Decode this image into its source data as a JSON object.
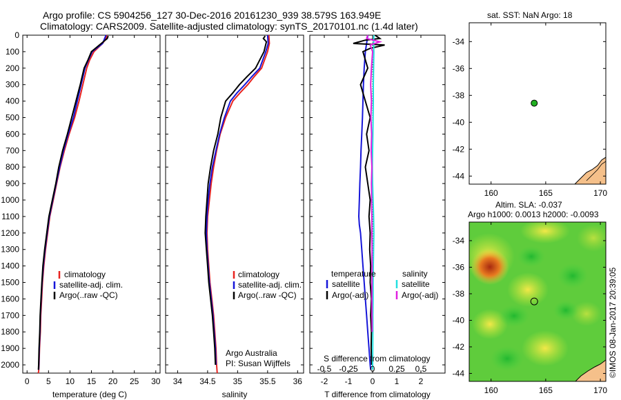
{
  "header": {
    "line1": "Argo profile: CS 5904256_127 30-Dec-2016 20161230_939 38.579S 163.949E",
    "line2": "Climatology: CARS2009. Satellite-adjusted climatology: synTS_20170101.nc (1.4d later)"
  },
  "colors": {
    "clim": "#e8231f",
    "sat": "#1515d8",
    "argo": "#000000",
    "sat_s": "#22e0e0",
    "argo_s": "#e020e0"
  },
  "chart_data": [
    {
      "type": "line",
      "id": "temperature",
      "xlabel": "temperature (deg C)",
      "xlim": [
        -1,
        31
      ],
      "ylim": [
        2050,
        0
      ],
      "xticks": [
        0,
        5,
        10,
        15,
        20,
        25,
        30
      ],
      "yticks": [
        0,
        100,
        200,
        300,
        400,
        500,
        600,
        700,
        800,
        900,
        1000,
        1100,
        1200,
        1300,
        1400,
        1500,
        1600,
        1700,
        1800,
        1900,
        2000
      ],
      "legend": [
        "climatology",
        "satellite-adj. clim.",
        "Argo(..raw -QC)"
      ],
      "series": [
        {
          "name": "climatology",
          "color": "clim",
          "x": [
            18.6,
            18.4,
            17.6,
            15.6,
            14.6,
            13.9,
            13.0,
            12.1,
            11.1,
            9.8,
            8.7,
            7.7,
            6.9,
            6.1,
            5.3,
            4.8,
            4.3,
            3.9,
            3.6,
            3.4,
            3.2,
            3.1,
            2.9,
            2.8,
            2.7,
            2.6
          ],
          "y": [
            0,
            20,
            50,
            100,
            150,
            200,
            300,
            400,
            500,
            600,
            700,
            800,
            900,
            1000,
            1100,
            1200,
            1300,
            1400,
            1500,
            1600,
            1700,
            1800,
            1900,
            2000,
            2040,
            2050
          ]
        },
        {
          "name": "satellite-adj. clim.",
          "color": "sat",
          "x": [
            18.4,
            17.6,
            15.2,
            14.3,
            13.5,
            12.6,
            11.7,
            10.8,
            9.6,
            8.5,
            7.6,
            6.8,
            6.0,
            5.2,
            4.7,
            4.2,
            3.8,
            3.5,
            3.3,
            3.1,
            3.0,
            2.85,
            2.75,
            2.7
          ],
          "y": [
            0,
            50,
            100,
            150,
            200,
            300,
            400,
            500,
            600,
            700,
            800,
            900,
            1000,
            1100,
            1200,
            1300,
            1400,
            1500,
            1600,
            1700,
            1800,
            1900,
            2000,
            2030
          ]
        },
        {
          "name": "Argo(..raw -QC)",
          "color": "argo",
          "x": [
            18.9,
            18.7,
            17.3,
            15.0,
            14.2,
            13.3,
            12.4,
            11.4,
            10.4,
            9.4,
            8.3,
            7.4,
            6.7,
            5.9,
            5.1,
            4.6,
            4.1,
            3.7,
            3.45,
            3.25,
            3.05,
            2.95,
            2.8,
            2.7,
            2.65
          ],
          "y": [
            5,
            20,
            50,
            100,
            150,
            200,
            300,
            400,
            500,
            600,
            700,
            800,
            900,
            1000,
            1100,
            1200,
            1300,
            1400,
            1500,
            1600,
            1700,
            1800,
            1900,
            2000,
            2030
          ]
        }
      ]
    },
    {
      "type": "line",
      "id": "salinity",
      "xlabel": "salinity",
      "xlim": [
        33.8,
        36.1
      ],
      "ylim": [
        2050,
        0
      ],
      "xticks": [
        34,
        34.5,
        35,
        35.5,
        36
      ],
      "legend": [
        "climatology",
        "satellite-adj. clim.",
        "Argo(..raw -QC)"
      ],
      "annotation": [
        "Argo Australia",
        "PI: Susan Wijffels"
      ],
      "series": [
        {
          "name": "climatology",
          "color": "clim",
          "x": [
            35.52,
            35.53,
            35.5,
            35.4,
            35.28,
            35.17,
            35.04,
            34.92,
            34.8,
            34.71,
            34.65,
            34.6,
            34.56,
            34.53,
            34.5,
            34.49,
            34.5,
            34.52,
            34.54,
            34.57,
            34.6,
            34.62,
            34.64,
            34.65,
            34.66
          ],
          "y": [
            0,
            50,
            100,
            200,
            250,
            300,
            350,
            400,
            500,
            600,
            700,
            800,
            900,
            1000,
            1100,
            1200,
            1300,
            1400,
            1500,
            1600,
            1700,
            1800,
            1900,
            2000,
            2050
          ]
        },
        {
          "name": "satellite-adj. clim.",
          "color": "sat",
          "x": [
            35.5,
            35.51,
            35.47,
            35.37,
            35.24,
            35.12,
            34.99,
            34.88,
            34.78,
            34.7,
            34.64,
            34.58,
            34.54,
            34.51,
            34.49,
            34.48,
            34.49,
            34.51,
            34.53,
            34.56,
            34.59,
            34.61,
            34.63,
            34.64
          ],
          "y": [
            0,
            50,
            100,
            200,
            250,
            300,
            350,
            400,
            500,
            600,
            700,
            800,
            900,
            1000,
            1100,
            1200,
            1300,
            1400,
            1500,
            1600,
            1700,
            1800,
            1900,
            2000
          ]
        },
        {
          "name": "Argo(..raw -QC)",
          "color": "argo",
          "x": [
            35.46,
            35.43,
            35.48,
            35.44,
            35.3,
            35.16,
            35.03,
            34.92,
            34.8,
            34.72,
            34.67,
            34.6,
            34.55,
            34.51,
            34.49,
            34.47,
            34.46,
            34.48,
            34.5,
            34.52,
            34.55,
            34.58,
            34.6,
            34.62,
            34.63
          ],
          "y": [
            5,
            20,
            40,
            100,
            200,
            250,
            300,
            350,
            400,
            500,
            600,
            700,
            800,
            900,
            1000,
            1100,
            1200,
            1300,
            1400,
            1500,
            1600,
            1700,
            1800,
            1900,
            2000
          ]
        }
      ]
    },
    {
      "type": "line",
      "id": "differences",
      "xlabel": "T difference from climatology",
      "xlabel_top": "S difference from climatology",
      "xlim": [
        -2.6,
        3
      ],
      "ylim": [
        2050,
        0
      ],
      "xticks": [
        -2,
        -1,
        0,
        1,
        2
      ],
      "s_ticks": [
        "-0.5",
        "-0.25",
        "0",
        "0.25",
        "0.5"
      ],
      "legend_headers": [
        "temperature",
        "salinity"
      ],
      "legend": [
        "satellite",
        "Argo(-adj)",
        "satellite",
        "Argo(-adj)"
      ],
      "series": [
        {
          "name": "satellite",
          "color": "sat",
          "x": [
            -0.2,
            -0.25,
            -0.3,
            -0.35,
            -0.38,
            -0.4,
            -0.42,
            -0.45,
            -0.48,
            -0.5,
            -0.53,
            -0.55,
            -0.57,
            -0.55,
            -0.5,
            -0.45,
            -0.4,
            -0.35,
            -0.3,
            -0.25,
            -0.2,
            -0.15,
            -0.1,
            -0.08
          ],
          "y": [
            0,
            50,
            100,
            200,
            300,
            400,
            500,
            600,
            700,
            800,
            900,
            1000,
            1100,
            1150,
            1200,
            1300,
            1400,
            1500,
            1600,
            1700,
            1800,
            1900,
            2000,
            2030
          ]
        },
        {
          "name": "Argo(-adj)",
          "color": "argo",
          "x": [
            0.1,
            0.3,
            -0.3,
            -0.8,
            0.5,
            -0.1,
            -0.4,
            -0.2,
            -0.5,
            -0.3,
            -0.1,
            -0.25,
            -0.15,
            -0.3,
            -0.2,
            -0.1,
            -0.15,
            -0.1,
            -0.12,
            -0.08,
            -0.1,
            -0.05,
            -0.08,
            -0.05,
            -0.06,
            -0.04
          ],
          "y": [
            0,
            20,
            30,
            50,
            60,
            80,
            100,
            200,
            300,
            400,
            500,
            600,
            700,
            800,
            900,
            1000,
            1100,
            1200,
            1300,
            1400,
            1500,
            1600,
            1700,
            1800,
            1900,
            2000
          ]
        },
        {
          "name": "satellite",
          "color": "sat_s",
          "x": [
            0.05,
            0.04,
            0.05,
            0.04,
            0.03,
            0.03,
            0.02,
            0.01,
            0.0,
            -0.01,
            0.0,
            0.02,
            0.04,
            0.05,
            0.04,
            0.03,
            0.02,
            0.02,
            0.01,
            0.01,
            0.0
          ],
          "y": [
            0,
            50,
            100,
            200,
            300,
            400,
            500,
            600,
            700,
            800,
            900,
            1000,
            1100,
            1200,
            1300,
            1400,
            1500,
            1600,
            1700,
            1800,
            2030
          ]
        },
        {
          "name": "Argo(-adj)",
          "color": "argo_s",
          "x": [
            -0.2,
            -0.25,
            0.3,
            -0.1,
            0.0,
            -0.05,
            -0.08,
            -0.05,
            -0.07,
            -0.04,
            -0.06,
            -0.03,
            -0.05,
            -0.04,
            -0.03,
            -0.02,
            -0.03,
            -0.02
          ],
          "y": [
            0,
            20,
            40,
            60,
            100,
            200,
            300,
            400,
            500,
            600,
            700,
            800,
            900,
            1000,
            1200,
            1400,
            1600,
            1800
          ]
        }
      ]
    },
    {
      "type": "scatter",
      "id": "map-sst",
      "title": "sat. SST: NaN Argo: 18",
      "xlim": [
        158,
        170.5
      ],
      "ylim": [
        -44.6,
        -32.6
      ],
      "xticks": [
        160,
        165,
        170
      ],
      "yticks": [
        -34,
        -36,
        -38,
        -40,
        -42,
        -44
      ],
      "point": {
        "lon": 163.949,
        "lat": -38.579
      }
    },
    {
      "type": "heatmap",
      "id": "map-sla",
      "title": "Altim. SLA: -0.037",
      "subtitle": "Argo h1000: 0.0013 h2000: -0.0093",
      "xlim": [
        158,
        170.5
      ],
      "ylim": [
        -44.6,
        -32.6
      ],
      "xticks": [
        160,
        165,
        170
      ],
      "yticks": [
        -34,
        -36,
        -38,
        -40,
        -42,
        -44
      ],
      "point": {
        "lon": 163.949,
        "lat": -38.579
      }
    }
  ],
  "credit": "©IMOS 08-Jan-2017 20:39:05"
}
